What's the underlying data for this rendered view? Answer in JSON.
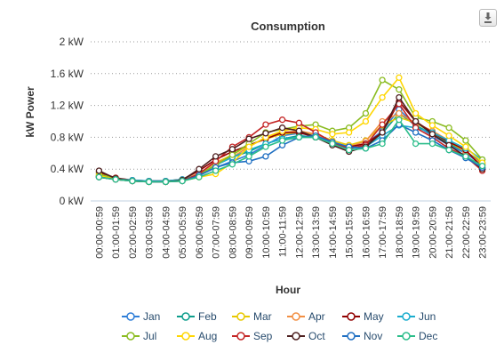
{
  "chart_data": {
    "type": "line",
    "title": "Consumption",
    "xlabel": "Hour",
    "ylabel": "kW Power",
    "y_unit_suffix": " kW",
    "ylim": [
      0,
      2
    ],
    "yticks": [
      0,
      0.4,
      0.8,
      1.2,
      1.6,
      2
    ],
    "grid": "horizontal-dotted",
    "legend": "bottom",
    "categories": [
      "00:00-00:59",
      "01:00-01:59",
      "02:00-02:59",
      "03:00-03:59",
      "04:00-04:59",
      "05:00-05:59",
      "06:00-06:59",
      "07:00-07:59",
      "08:00-08:59",
      "09:00-09:59",
      "10:00-10:59",
      "11:00-11:59",
      "12:00-12:59",
      "13:00-13:59",
      "14:00-14:59",
      "15:00-15:59",
      "16:00-16:59",
      "17:00-17:59",
      "18:00-18:59",
      "19:00-19:59",
      "20:00-20:59",
      "21:00-21:59",
      "22:00-22:59",
      "23:00-23:59"
    ],
    "series": [
      {
        "name": "Jan",
        "color": "#2f7ed8",
        "values": [
          0.3,
          0.28,
          0.26,
          0.25,
          0.25,
          0.26,
          0.32,
          0.42,
          0.5,
          0.58,
          0.7,
          0.82,
          0.85,
          0.82,
          0.74,
          0.68,
          0.72,
          0.88,
          1.15,
          0.95,
          0.82,
          0.7,
          0.6,
          0.45
        ]
      },
      {
        "name": "Feb",
        "color": "#0d9d8c",
        "values": [
          0.3,
          0.27,
          0.25,
          0.24,
          0.24,
          0.25,
          0.32,
          0.45,
          0.55,
          0.62,
          0.72,
          0.78,
          0.82,
          0.8,
          0.72,
          0.66,
          0.7,
          0.85,
          1.1,
          0.95,
          0.84,
          0.72,
          0.62,
          0.48
        ]
      },
      {
        "name": "Mar",
        "color": "#e8c800",
        "values": [
          0.3,
          0.27,
          0.25,
          0.24,
          0.24,
          0.26,
          0.34,
          0.48,
          0.58,
          0.7,
          0.78,
          0.84,
          0.86,
          0.84,
          0.76,
          0.7,
          0.76,
          0.95,
          1.05,
          0.98,
          0.86,
          0.74,
          0.62,
          0.46
        ]
      },
      {
        "name": "Apr",
        "color": "#f28f43",
        "values": [
          0.32,
          0.28,
          0.25,
          0.24,
          0.24,
          0.26,
          0.35,
          0.48,
          0.55,
          0.68,
          0.8,
          0.86,
          0.88,
          0.84,
          0.74,
          0.68,
          0.75,
          1.0,
          1.1,
          0.98,
          0.88,
          0.76,
          0.62,
          0.46
        ]
      },
      {
        "name": "May",
        "color": "#910000",
        "values": [
          0.36,
          0.29,
          0.26,
          0.25,
          0.25,
          0.27,
          0.38,
          0.52,
          0.62,
          0.7,
          0.78,
          0.86,
          0.86,
          0.8,
          0.72,
          0.68,
          0.72,
          0.86,
          1.25,
          1.0,
          0.86,
          0.74,
          0.64,
          0.42
        ]
      },
      {
        "name": "Jun",
        "color": "#1aadce",
        "values": [
          0.32,
          0.28,
          0.26,
          0.25,
          0.25,
          0.27,
          0.33,
          0.45,
          0.55,
          0.64,
          0.72,
          0.78,
          0.8,
          0.8,
          0.74,
          0.66,
          0.68,
          0.82,
          0.95,
          0.92,
          0.86,
          0.76,
          0.66,
          0.52
        ]
      },
      {
        "name": "Jul",
        "color": "#8bbc21",
        "values": [
          0.34,
          0.28,
          0.25,
          0.24,
          0.24,
          0.26,
          0.33,
          0.45,
          0.58,
          0.72,
          0.86,
          0.9,
          0.94,
          0.96,
          0.88,
          0.92,
          1.1,
          1.52,
          1.4,
          1.05,
          1.0,
          0.92,
          0.76,
          0.52
        ]
      },
      {
        "name": "Aug",
        "color": "#ffd600",
        "values": [
          0.32,
          0.27,
          0.25,
          0.24,
          0.24,
          0.25,
          0.3,
          0.34,
          0.48,
          0.68,
          0.8,
          0.88,
          0.92,
          0.9,
          0.84,
          0.86,
          1.0,
          1.3,
          1.55,
          1.1,
          0.95,
          0.82,
          0.68,
          0.48
        ]
      },
      {
        "name": "Sep",
        "color": "#c42525",
        "values": [
          0.3,
          0.27,
          0.25,
          0.24,
          0.24,
          0.25,
          0.34,
          0.5,
          0.68,
          0.8,
          0.96,
          1.02,
          0.98,
          0.86,
          0.74,
          0.66,
          0.7,
          0.96,
          1.22,
          0.92,
          0.8,
          0.66,
          0.56,
          0.38
        ]
      },
      {
        "name": "Oct",
        "color": "#4d1f1f",
        "values": [
          0.38,
          0.28,
          0.25,
          0.24,
          0.24,
          0.26,
          0.4,
          0.56,
          0.65,
          0.78,
          0.85,
          0.92,
          0.88,
          0.8,
          0.7,
          0.62,
          0.68,
          0.86,
          1.3,
          1.0,
          0.84,
          0.7,
          0.56,
          0.4
        ]
      },
      {
        "name": "Nov",
        "color": "#1f6fc2",
        "values": [
          0.3,
          0.27,
          0.25,
          0.24,
          0.24,
          0.25,
          0.32,
          0.42,
          0.48,
          0.5,
          0.56,
          0.7,
          0.8,
          0.82,
          0.74,
          0.68,
          0.66,
          0.76,
          0.96,
          0.86,
          0.76,
          0.64,
          0.54,
          0.42
        ]
      },
      {
        "name": "Dec",
        "color": "#2bbd8a",
        "values": [
          0.3,
          0.27,
          0.25,
          0.24,
          0.24,
          0.25,
          0.3,
          0.38,
          0.46,
          0.56,
          0.68,
          0.76,
          0.8,
          0.8,
          0.72,
          0.64,
          0.66,
          0.72,
          1.02,
          0.72,
          0.72,
          0.64,
          0.56,
          0.44
        ]
      }
    ]
  },
  "export": {
    "icon": "download-icon"
  }
}
